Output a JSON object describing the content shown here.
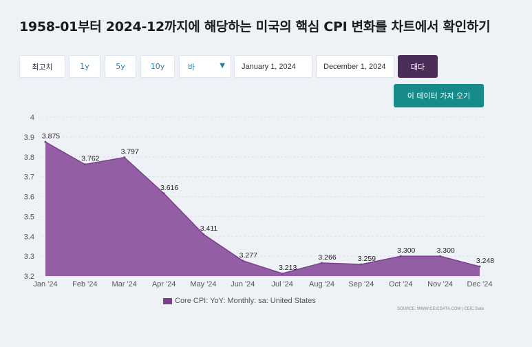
{
  "title": "1958-01부터 2024-12까지에 해당하는 미국의 핵심 CPI 변화를 차트에서 확인하기",
  "controls": {
    "range_buttons": [
      "최고치",
      "1y",
      "5y",
      "10y"
    ],
    "frequency_select": "바",
    "start_date": "January 1, 2024",
    "end_date": "December 1, 2024",
    "apply_label": "대다",
    "fetch_label": "이 데이터 가져 오기"
  },
  "source": "SOURCE: WWW.CEICDATA.COM | CEIC Data",
  "colors": {
    "area": "#7a3f8c",
    "apply": "#4b2d5a",
    "fetch": "#178a8a"
  },
  "chart_data": {
    "type": "area",
    "categories": [
      "Jan '24",
      "Feb '24",
      "Mar '24",
      "Apr '24",
      "May '24",
      "Jun '24",
      "Jul '24",
      "Aug '24",
      "Sep '24",
      "Oct '24",
      "Nov '24",
      "Dec '24"
    ],
    "series": [
      {
        "name": "Core CPI: YoY: Monthly: sa: United States",
        "values": [
          3.875,
          3.762,
          3.797,
          3.616,
          3.411,
          3.277,
          3.213,
          3.266,
          3.259,
          3.3,
          3.3,
          3.248
        ],
        "labels": [
          "3.875",
          "3.762",
          "3.797",
          "3.616",
          "3.411",
          "3.277",
          "3.213",
          "3.266",
          "3.259",
          "3.300",
          "3.300",
          "3.248"
        ]
      }
    ],
    "ylim": [
      3.2,
      4
    ],
    "yticks": [
      "3.2",
      "3.3",
      "3.4",
      "3.5",
      "3.6",
      "3.7",
      "3.8",
      "3.9",
      "4"
    ],
    "grid": true,
    "legend": "bottom-center"
  }
}
